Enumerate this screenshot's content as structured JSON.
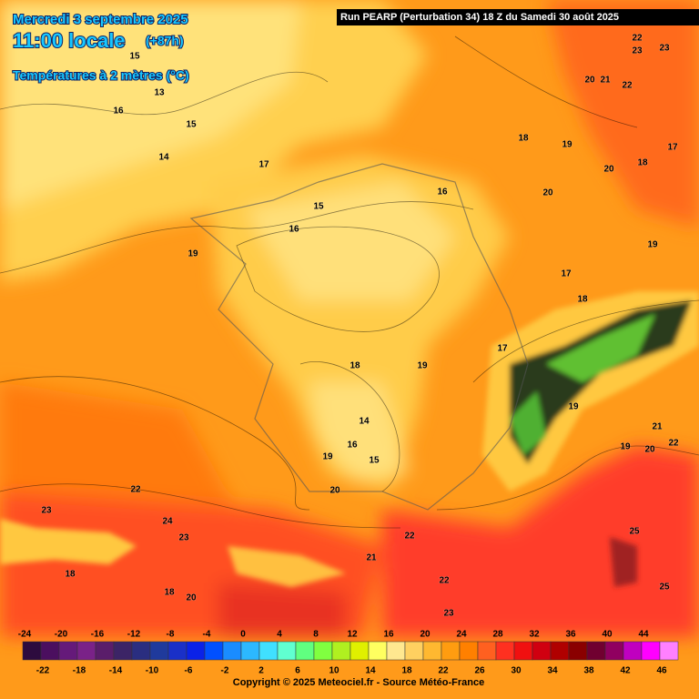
{
  "header": {
    "date": "Mercredi 3 septembre 2025",
    "time": "11:00 locale",
    "lead": "(+87h)",
    "variable": "Températures à 2 mètres (°C)",
    "run": "Run PEARP (Perturbation 34) 18 Z du Samedi 30 août 2025"
  },
  "map_labels": [
    "15",
    "13",
    "16",
    "15",
    "14",
    "17",
    "15",
    "16",
    "19",
    "16",
    "18",
    "19",
    "20",
    "18",
    "17",
    "20",
    "19",
    "17",
    "18",
    "17",
    "18",
    "19",
    "14",
    "16",
    "15",
    "19",
    "20",
    "22",
    "19",
    "21",
    "19",
    "20",
    "22",
    "23",
    "24",
    "23",
    "22",
    "21",
    "22",
    "23",
    "25",
    "25",
    "18",
    "18",
    "20",
    "22",
    "23",
    "23",
    "20",
    "21",
    "22"
  ],
  "legend": {
    "top_labels": [
      "-24",
      "-20",
      "-16",
      "-12",
      "-8",
      "-4",
      "0",
      "4",
      "8",
      "12",
      "16",
      "20",
      "24",
      "28",
      "32",
      "36",
      "40",
      "44"
    ],
    "bottom_labels": [
      "-22",
      "-18",
      "-14",
      "-10",
      "-6",
      "-2",
      "2",
      "6",
      "10",
      "14",
      "18",
      "22",
      "26",
      "30",
      "34",
      "38",
      "42",
      "46"
    ],
    "colors": [
      "#2d0b3e",
      "#4b0f5f",
      "#651a7a",
      "#7a2288",
      "#5a1d6a",
      "#3c2466",
      "#2a2e80",
      "#1f3a9c",
      "#1a30c8",
      "#0a22e8",
      "#0050ff",
      "#1a8cff",
      "#2cb8ff",
      "#40e0ff",
      "#60ffd0",
      "#60ff80",
      "#80ff40",
      "#b0f020",
      "#e0f000",
      "#ffff60",
      "#ffe890",
      "#ffd060",
      "#ffb830",
      "#ff9c10",
      "#ff8000",
      "#ff6020",
      "#ff3020",
      "#f01010",
      "#d00010",
      "#b00000",
      "#8a0000",
      "#700030",
      "#900060",
      "#c000c0",
      "#ff00ff",
      "#ff80ff"
    ]
  },
  "copyright": "Copyright © 2025 Meteociel.fr - Source Météo-France"
}
